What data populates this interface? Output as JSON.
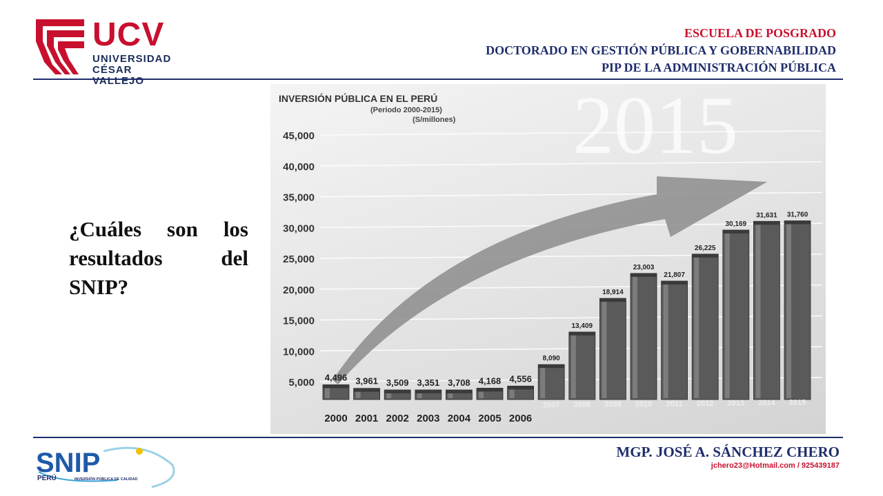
{
  "header": {
    "logo": {
      "brand": "UCV",
      "line1": "UNIVERSIDAD",
      "line2": "CÉSAR VALLEJO"
    },
    "school": "ESCUELA DE POSGRADO",
    "doctorate": "DOCTORADO EN GESTIÓN PÚBLICA Y GOBERNABILIDAD",
    "pip": "PIP DE LA ADMINISTRACIÓN PÚBLICA"
  },
  "question": "¿Cuáles son los resultados del SNIP?",
  "chart_data": {
    "type": "bar",
    "title": "INVERSIÓN PÚBLICA EN EL PERÚ",
    "subtitle": "(Periodo 2000-2015)",
    "unit": "(S/millones)",
    "watermark": "2015",
    "categories": [
      "2000",
      "2001",
      "2002",
      "2003",
      "2004",
      "2005",
      "2006",
      "2007",
      "2008",
      "2009",
      "2010",
      "2011",
      "2012",
      "2013",
      "2014",
      "2015"
    ],
    "values": [
      4496,
      3961,
      3509,
      3351,
      3708,
      4168,
      4556,
      8090,
      13409,
      18914,
      23003,
      21807,
      26225,
      30169,
      31631,
      31760
    ],
    "value_labels": [
      "4,496",
      "3,961",
      "3,509",
      "3,351",
      "3,708",
      "4,168",
      "4,556",
      "8,090",
      "13,409",
      "18,914",
      "23,003",
      "21,807",
      "26,225",
      "30,169",
      "31,631",
      "31,760"
    ],
    "y_ticks": [
      "45,000",
      "40,000",
      "35,000",
      "30,000",
      "25,000",
      "20,000",
      "15,000",
      "10,000",
      "5,000"
    ],
    "y_tick_values": [
      45000,
      40000,
      35000,
      30000,
      25000,
      20000,
      15000,
      10000,
      5000
    ],
    "ylim": [
      2000,
      45000
    ],
    "grid": true,
    "bar_color": "#5a5a5a",
    "arrow_color": "#8c8c8c"
  },
  "footer": {
    "snip_logo": {
      "brand": "SNIP",
      "country": "PERÚ",
      "tagline": "INVERSIÓN PÚBLICA DE CALIDAD"
    },
    "author": "MGP. JOSÉ A. SÁNCHEZ CHERO",
    "contact": "jchero23@Hotmail.com / 925439187"
  }
}
